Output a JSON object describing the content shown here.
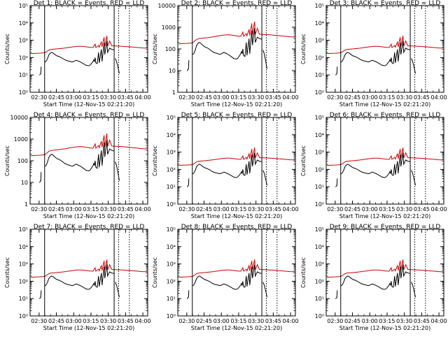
{
  "colors": {
    "events": "#000000",
    "lld": "#cc0000",
    "axes": "#000000",
    "background": "#ffffff"
  },
  "shared": {
    "x_tick_labels": [
      "02:30",
      "02:45",
      "03:00",
      "03:15",
      "03:30",
      "03:45",
      "04:00"
    ],
    "x_tick_values": [
      2.5,
      2.75,
      3.0,
      3.25,
      3.5,
      3.75,
      4.0
    ],
    "xlim": [
      2.37,
      4.07
    ],
    "xlabel": "Start Time (12-Nov-15 02:21:20)",
    "ylabel": "Counts/sec",
    "solid_markers": [
      2.58,
      3.585
    ],
    "dashed_markers": [
      3.65,
      3.805
    ],
    "events_profile": [
      [
        2.58,
        55
      ],
      [
        2.6,
        60
      ],
      [
        2.62,
        85
      ],
      [
        2.64,
        140
      ],
      [
        2.66,
        180
      ],
      [
        2.68,
        200
      ],
      [
        2.7,
        185
      ],
      [
        2.72,
        160
      ],
      [
        2.74,
        140
      ],
      [
        2.76,
        125
      ],
      [
        2.78,
        118
      ],
      [
        2.8,
        110
      ],
      [
        2.82,
        100
      ],
      [
        2.84,
        90
      ],
      [
        2.86,
        80
      ],
      [
        2.88,
        72
      ],
      [
        2.9,
        68
      ],
      [
        2.92,
        64
      ],
      [
        2.94,
        62
      ],
      [
        2.96,
        58
      ],
      [
        2.98,
        56
      ],
      [
        3.0,
        60
      ],
      [
        3.02,
        66
      ],
      [
        3.04,
        70
      ],
      [
        3.06,
        64
      ],
      [
        3.08,
        60
      ],
      [
        3.1,
        55
      ],
      [
        3.12,
        50
      ],
      [
        3.14,
        45
      ],
      [
        3.16,
        40
      ],
      [
        3.18,
        36
      ],
      [
        3.2,
        35
      ],
      [
        3.22,
        34
      ],
      [
        3.24,
        38
      ],
      [
        3.26,
        48
      ],
      [
        3.28,
        60
      ],
      [
        3.29,
        75
      ],
      [
        3.3,
        60
      ],
      [
        3.31,
        100
      ],
      [
        3.32,
        50
      ],
      [
        3.34,
        45
      ],
      [
        3.36,
        200
      ],
      [
        3.37,
        50
      ],
      [
        3.4,
        300
      ],
      [
        3.41,
        60
      ],
      [
        3.44,
        700
      ],
      [
        3.45,
        150
      ],
      [
        3.48,
        900
      ],
      [
        3.49,
        200
      ],
      [
        3.52,
        350
      ],
      [
        3.55,
        300
      ],
      [
        3.585,
        280
      ]
    ],
    "lld_profile": [
      [
        2.38,
        170
      ],
      [
        2.42,
        175
      ],
      [
        2.46,
        178
      ],
      [
        2.5,
        180
      ],
      [
        2.55,
        185
      ],
      [
        2.58,
        190
      ],
      [
        2.6,
        210
      ],
      [
        2.62,
        240
      ],
      [
        2.64,
        270
      ],
      [
        2.66,
        290
      ],
      [
        2.68,
        300
      ],
      [
        2.72,
        310
      ],
      [
        2.76,
        320
      ],
      [
        2.8,
        330
      ],
      [
        2.84,
        345
      ],
      [
        2.88,
        360
      ],
      [
        2.92,
        380
      ],
      [
        2.96,
        400
      ],
      [
        3.0,
        420
      ],
      [
        3.04,
        440
      ],
      [
        3.08,
        450
      ],
      [
        3.12,
        445
      ],
      [
        3.16,
        430
      ],
      [
        3.2,
        410
      ],
      [
        3.24,
        390
      ],
      [
        3.28,
        380
      ],
      [
        3.31,
        600
      ],
      [
        3.32,
        380
      ],
      [
        3.36,
        500
      ],
      [
        3.37,
        400
      ],
      [
        3.4,
        800
      ],
      [
        3.41,
        420
      ],
      [
        3.44,
        1500
      ],
      [
        3.45,
        450
      ],
      [
        3.48,
        1800
      ],
      [
        3.49,
        460
      ],
      [
        3.52,
        900
      ],
      [
        3.55,
        480
      ],
      [
        3.6,
        470
      ],
      [
        3.7,
        450
      ],
      [
        3.8,
        420
      ],
      [
        3.9,
        390
      ],
      [
        4.0,
        360
      ],
      [
        4.06,
        350
      ]
    ],
    "events_tail": [
      [
        3.6,
        90
      ],
      [
        3.62,
        60
      ],
      [
        3.64,
        28
      ],
      [
        3.66,
        12
      ]
    ],
    "events_start": [
      [
        2.505,
        10
      ],
      [
        2.51,
        10
      ],
      [
        2.515,
        11
      ],
      [
        2.52,
        12
      ],
      [
        2.525,
        12
      ],
      [
        2.53,
        30
      ]
    ]
  },
  "panels": [
    {
      "title": "Det 1: BLACK = Events, RED = LLD",
      "y_ticks": [
        "10⁰",
        "10¹",
        "10²",
        "10³",
        "10⁴",
        "10⁵"
      ],
      "ylim": [
        1,
        100000
      ]
    },
    {
      "title": "Det 2: BLACK = Events, RED = LLD",
      "y_ticks": [
        "1",
        "10",
        "100",
        "1000",
        "10000"
      ],
      "ylim": [
        1,
        10000
      ]
    },
    {
      "title": "Det 3: BLACK = Events, RED = LLD",
      "y_ticks": [
        "10⁰",
        "10¹",
        "10²",
        "10³",
        "10⁴",
        "10⁵"
      ],
      "ylim": [
        1,
        100000
      ]
    },
    {
      "title": "Det 4: BLACK = Events, RED = LLD",
      "y_ticks": [
        "1",
        "10",
        "100",
        "1000",
        "10000"
      ],
      "ylim": [
        1,
        10000
      ]
    },
    {
      "title": "Det 5: BLACK = Events, RED = LLD",
      "y_ticks": [
        "10⁰",
        "10¹",
        "10²",
        "10³",
        "10⁴",
        "10⁵"
      ],
      "ylim": [
        1,
        100000
      ]
    },
    {
      "title": "Det 6: BLACK = Events, RED = LLD",
      "y_ticks": [
        "10⁰",
        "10¹",
        "10²",
        "10³",
        "10⁴",
        "10⁵"
      ],
      "ylim": [
        1,
        100000
      ]
    },
    {
      "title": "Det 7: BLACK = Events, RED = LLD",
      "y_ticks": [
        "10⁰",
        "10¹",
        "10²",
        "10³",
        "10⁴",
        "10⁵"
      ],
      "ylim": [
        1,
        100000
      ]
    },
    {
      "title": "Det 8: BLACK = Events, RED = LLD",
      "y_ticks": [
        "10⁰",
        "10¹",
        "10²",
        "10³",
        "10⁴",
        "10⁵"
      ],
      "ylim": [
        1,
        100000
      ]
    },
    {
      "title": "Det 9: BLACK = Events, RED = LLD",
      "y_ticks": [
        "10⁰",
        "10¹",
        "10²",
        "10³",
        "10⁴",
        "10⁵"
      ],
      "ylim": [
        1,
        100000
      ]
    }
  ],
  "chart_data": {
    "type": "line",
    "layout": "3x3 grid",
    "series": [
      {
        "name": "Events",
        "color": "#000000"
      },
      {
        "name": "LLD",
        "color": "#cc0000"
      }
    ],
    "xlabel": "Start Time (12-Nov-15 02:21:20)",
    "ylabel": "Counts/sec",
    "yscale": "log",
    "grid": false
  }
}
